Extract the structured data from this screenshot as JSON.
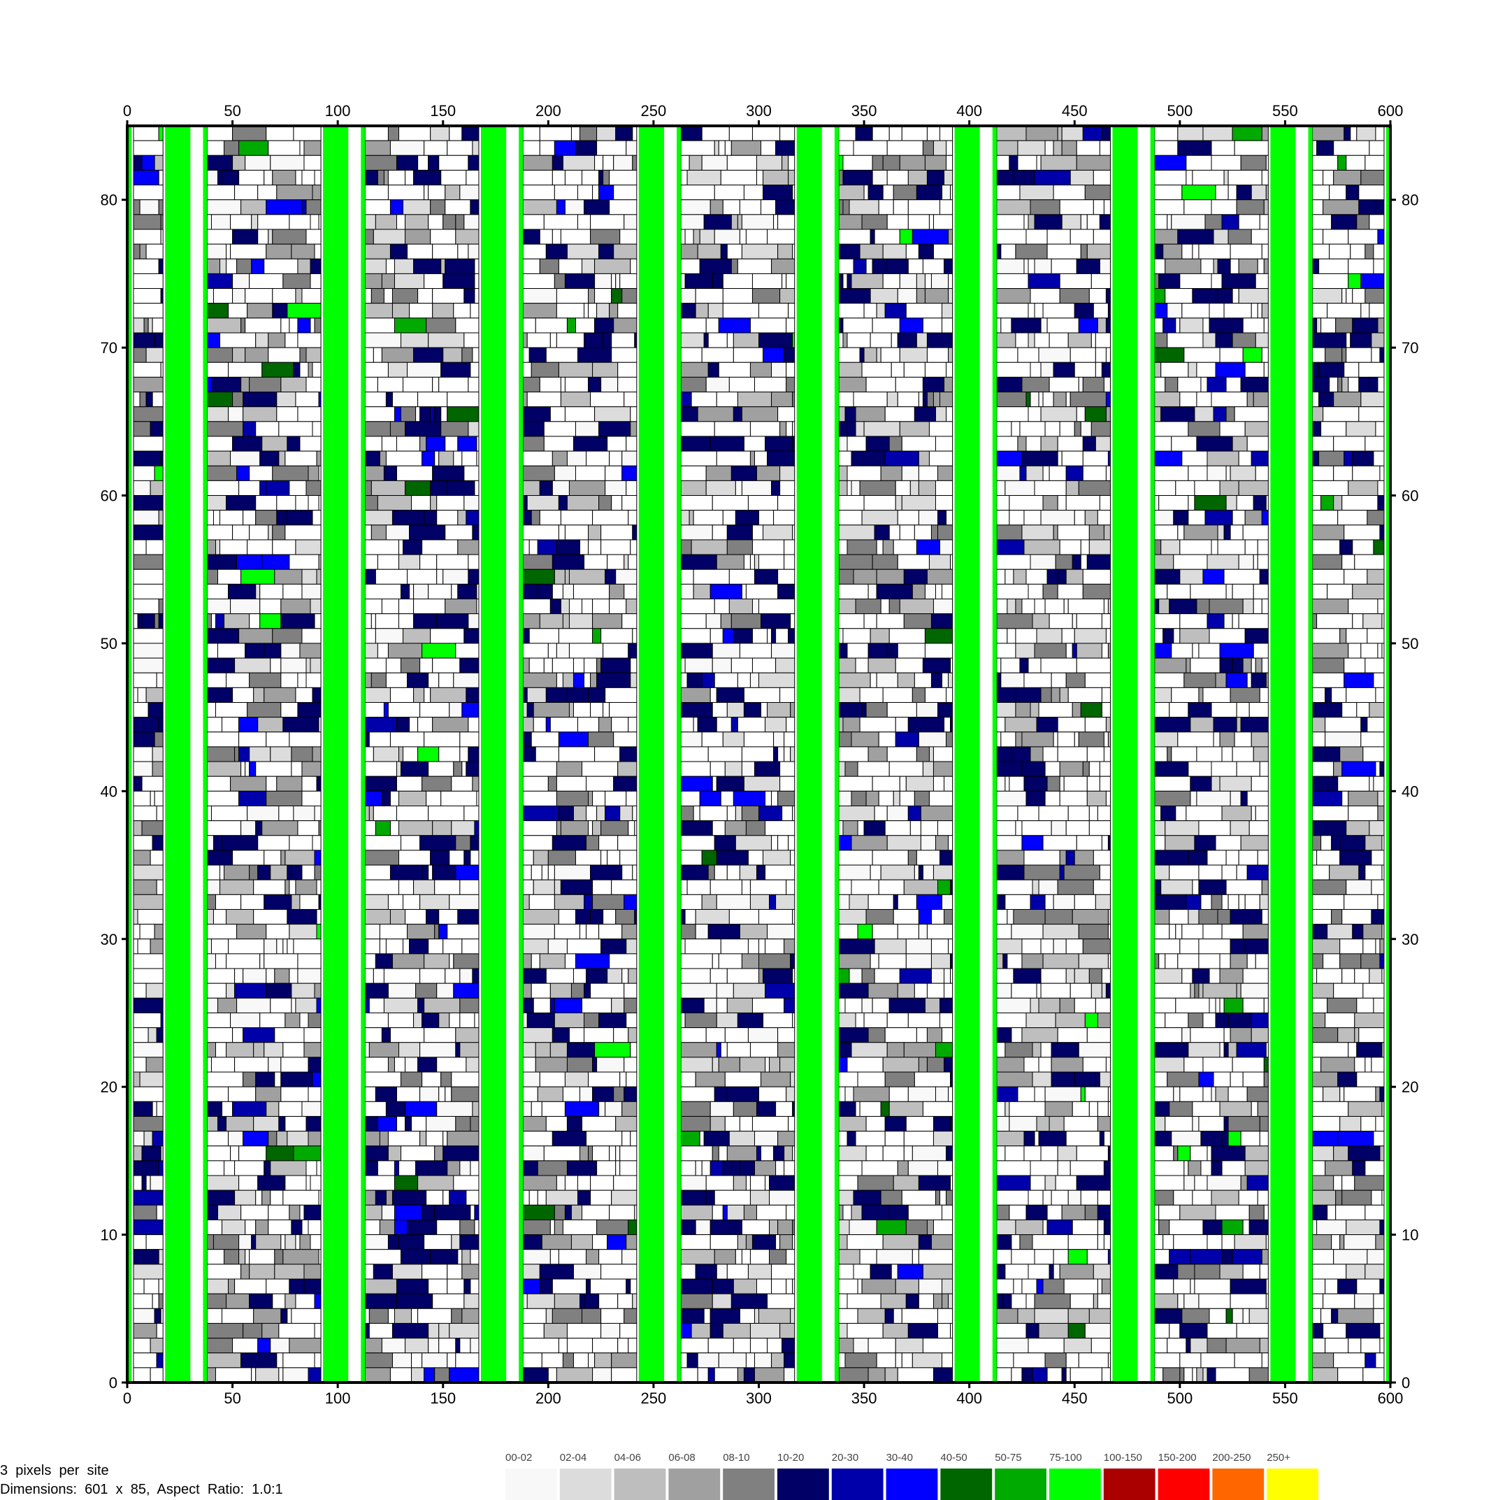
{
  "chart_data": {
    "type": "heatmap",
    "title": "",
    "xlabel": "",
    "ylabel": "",
    "xlim": [
      0,
      600
    ],
    "ylim": [
      0,
      85
    ],
    "x_ticks": [
      0,
      50,
      100,
      150,
      200,
      250,
      300,
      350,
      400,
      450,
      500,
      550,
      600
    ],
    "y_ticks": [
      0,
      10,
      20,
      30,
      40,
      50,
      60,
      70,
      80
    ],
    "dimensions": {
      "width_sites": 601,
      "height_sites": 85
    },
    "green_columns_x": [
      [
        18,
        30
      ],
      [
        93,
        105
      ],
      [
        168,
        180
      ],
      [
        243,
        255
      ],
      [
        318,
        330
      ],
      [
        393,
        405
      ],
      [
        468,
        480
      ],
      [
        543,
        555
      ]
    ],
    "thin_green_columns_x": [
      1,
      37,
      112,
      187,
      262,
      337,
      412,
      487,
      562,
      599
    ],
    "legend": [
      {
        "label": "00-02",
        "color": "#f8f8f8"
      },
      {
        "label": "02-04",
        "color": "#dcdcdc"
      },
      {
        "label": "04-06",
        "color": "#bebebe"
      },
      {
        "label": "06-08",
        "color": "#a0a0a0"
      },
      {
        "label": "08-10",
        "color": "#808080"
      },
      {
        "label": "10-20",
        "color": "#000066"
      },
      {
        "label": "20-30",
        "color": "#0000aa"
      },
      {
        "label": "30-40",
        "color": "#0000ff"
      },
      {
        "label": "40-50",
        "color": "#006600"
      },
      {
        "label": "50-75",
        "color": "#00aa00"
      },
      {
        "label": "75-100",
        "color": "#00ff00"
      },
      {
        "label": "100-150",
        "color": "#aa0000"
      },
      {
        "label": "150-200",
        "color": "#ff0000"
      },
      {
        "label": "200-250",
        "color": "#ff6600"
      },
      {
        "label": "250+",
        "color": "#ffff00"
      }
    ]
  },
  "info": {
    "line1": "3  pixels  per  site",
    "line2": "Dimensions:  601  x  85,  Aspect  Ratio:  1.0:1"
  }
}
